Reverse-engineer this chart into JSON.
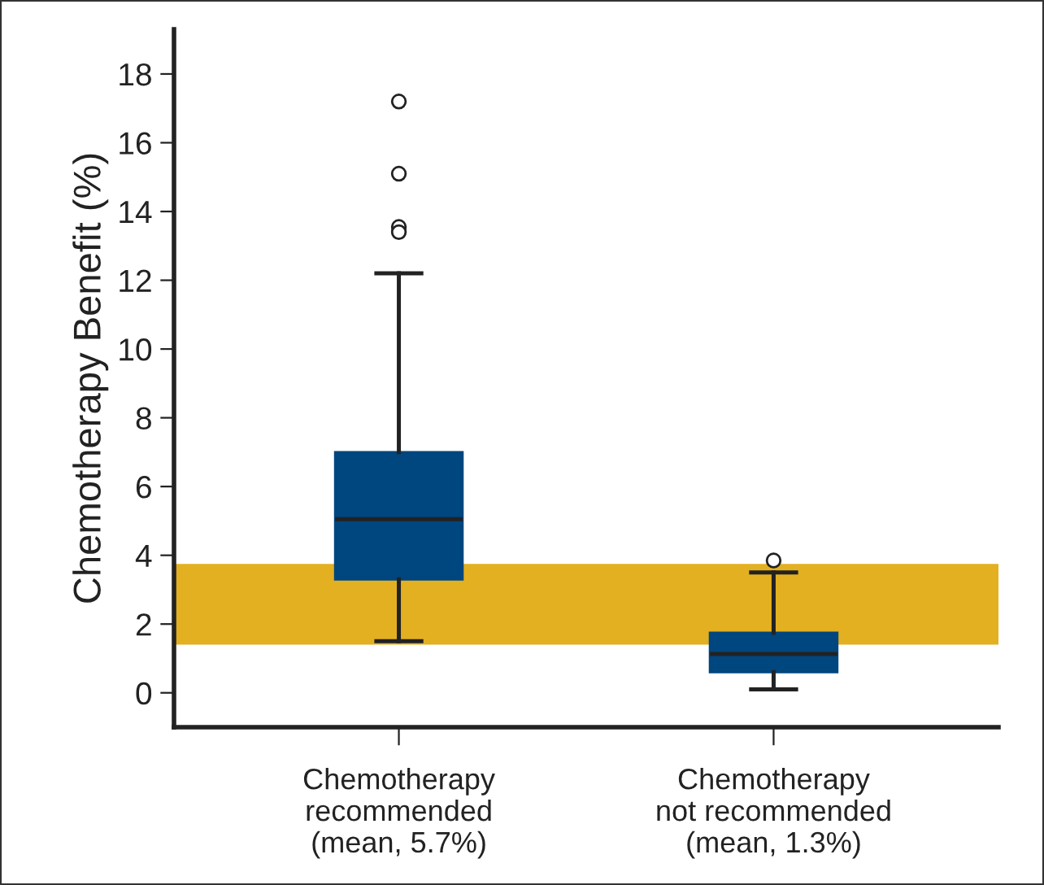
{
  "chart_data": {
    "type": "box",
    "ylabel": "Chemotherapy Benefit (%)",
    "categories": [
      "Chemotherapy\nrecommended\n(mean, 5.7%)",
      "Chemotherapy\nnot recommended\n(mean, 1.3%)"
    ],
    "color": "#00467f",
    "boxes": [
      {
        "low": 1.5,
        "q1": 3.3,
        "median": 5.05,
        "q3": 7.0,
        "high": 12.2,
        "outliers": [
          17.2,
          15.1,
          13.55,
          13.4
        ]
      },
      {
        "low": 0.1,
        "q1": 0.6,
        "median": 1.13,
        "q3": 1.75,
        "high": 3.5,
        "outliers": [
          3.85
        ]
      }
    ],
    "bands": [
      {
        "axis": "y",
        "from": 1.4,
        "to": 3.75,
        "color": "#e3b021"
      }
    ],
    "ylim": [
      -1,
      19.3
    ],
    "yticks": [
      0,
      2,
      4,
      6,
      8,
      10,
      12,
      14,
      16,
      18
    ],
    "grid": false,
    "legend": false
  }
}
